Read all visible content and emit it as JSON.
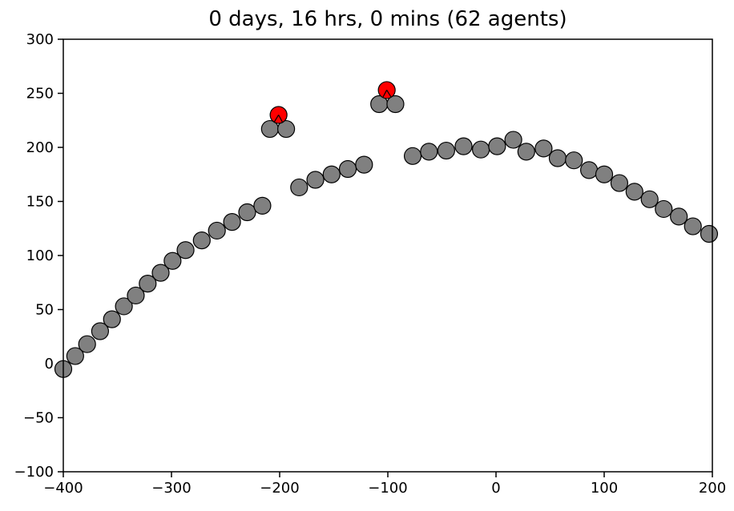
{
  "chart_data": {
    "type": "scatter",
    "title": "0 days, 16 hrs, 0 mins (62 agents)",
    "xlabel": "",
    "ylabel": "",
    "xlim": [
      -400,
      200
    ],
    "ylim": [
      -100,
      300
    ],
    "x_ticks": [
      -400,
      -300,
      -200,
      -100,
      0,
      100,
      200
    ],
    "x_tick_labels": [
      "−400",
      "−300",
      "−200",
      "−100",
      "0",
      "100",
      "200"
    ],
    "y_ticks": [
      -100,
      -50,
      0,
      50,
      100,
      150,
      200,
      250,
      300
    ],
    "y_tick_labels": [
      "−100",
      "−50",
      "0",
      "50",
      "100",
      "150",
      "200",
      "250",
      "300"
    ],
    "grid": false,
    "colors": {
      "agent": "#808080",
      "leader": "#ff0000",
      "edge": "#000000"
    },
    "series": [
      {
        "values": [
          [
            -400,
            -5
          ],
          [
            -389,
            7
          ],
          [
            -378,
            18
          ],
          [
            -366,
            30
          ],
          [
            -355,
            41
          ],
          [
            -344,
            53
          ],
          [
            -333,
            63
          ],
          [
            -322,
            74
          ],
          [
            -310,
            84
          ],
          [
            -299,
            95
          ],
          [
            -287,
            105
          ],
          [
            -272,
            114
          ],
          [
            -258,
            123
          ],
          [
            -244,
            131
          ],
          [
            -230,
            140
          ],
          [
            -216,
            146
          ],
          [
            -209,
            217
          ],
          [
            -194,
            217
          ],
          [
            -182,
            163
          ],
          [
            -167,
            170
          ],
          [
            -152,
            175
          ],
          [
            -137,
            180
          ],
          [
            -122,
            184
          ],
          [
            -108,
            240
          ],
          [
            -93,
            240
          ],
          [
            -77,
            192
          ],
          [
            -62,
            196
          ],
          [
            -46,
            197
          ],
          [
            -30,
            201
          ],
          [
            -14,
            198
          ],
          [
            1,
            201
          ],
          [
            16,
            207
          ],
          [
            28,
            196
          ],
          [
            44,
            199
          ],
          [
            57,
            190
          ],
          [
            72,
            188
          ],
          [
            86,
            179
          ],
          [
            100,
            175
          ],
          [
            114,
            167
          ],
          [
            128,
            159
          ],
          [
            142,
            152
          ],
          [
            155,
            143
          ],
          [
            169,
            136
          ],
          [
            182,
            127
          ],
          [
            197,
            120
          ]
        ]
      },
      {
        "values": [
          [
            -201,
            230
          ],
          [
            -101,
            253
          ]
        ]
      }
    ]
  }
}
